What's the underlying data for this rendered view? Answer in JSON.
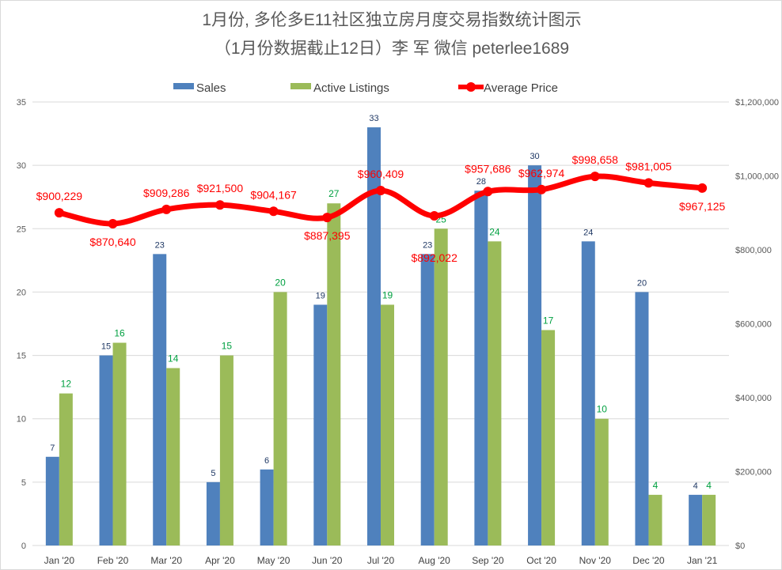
{
  "chart_data": {
    "type": "bar+line",
    "title": "1月份, 多伦多E11社区独立房月度交易指数统计图示",
    "subtitle": "（1月份数据截止12日）李 军  微信  peterlee1689",
    "categories": [
      "Jan '20",
      "Feb '20",
      "Mar '20",
      "Apr '20",
      "May '20",
      "Jun '20",
      "Jul '20",
      "Aug '20",
      "Sep '20",
      "Oct '20",
      "Nov '20",
      "Dec '20",
      "Jan '21"
    ],
    "series": [
      {
        "name": "Sales",
        "type": "bar",
        "axis": "left",
        "color": "#4f81bd",
        "label_color": "#1f3864",
        "values": [
          7,
          15,
          23,
          5,
          6,
          19,
          33,
          23,
          28,
          30,
          24,
          20,
          4
        ]
      },
      {
        "name": "Active Listings",
        "type": "bar",
        "axis": "left",
        "color": "#9bbb59",
        "label_color": "#00a040",
        "values": [
          12,
          16,
          14,
          15,
          20,
          27,
          19,
          25,
          24,
          17,
          10,
          4,
          4
        ]
      },
      {
        "name": "Average Price",
        "type": "line",
        "axis": "right",
        "color": "#ff0000",
        "values": [
          900229,
          870640,
          909286,
          921500,
          904167,
          887395,
          960409,
          892022,
          957686,
          962974,
          998658,
          981005,
          967125
        ],
        "labels": [
          "$900,229",
          "$870,640",
          "$909,286",
          "$921,500",
          "$904,167",
          "$887,395",
          "$960,409",
          "$892,022",
          "$957,686",
          "$962,974",
          "$998,658",
          "$981,005",
          "$967,125"
        ]
      }
    ],
    "y_left": {
      "range": [
        0,
        35
      ],
      "ticks": [
        "0",
        "5",
        "10",
        "15",
        "20",
        "25",
        "30",
        "35"
      ]
    },
    "y_right": {
      "range": [
        0,
        1200000
      ],
      "ticks": [
        "$0",
        "$200,000",
        "$400,000",
        "$600,000",
        "$800,000",
        "$1,000,000",
        "$1,200,000"
      ]
    },
    "grid": true,
    "legend": "top"
  }
}
